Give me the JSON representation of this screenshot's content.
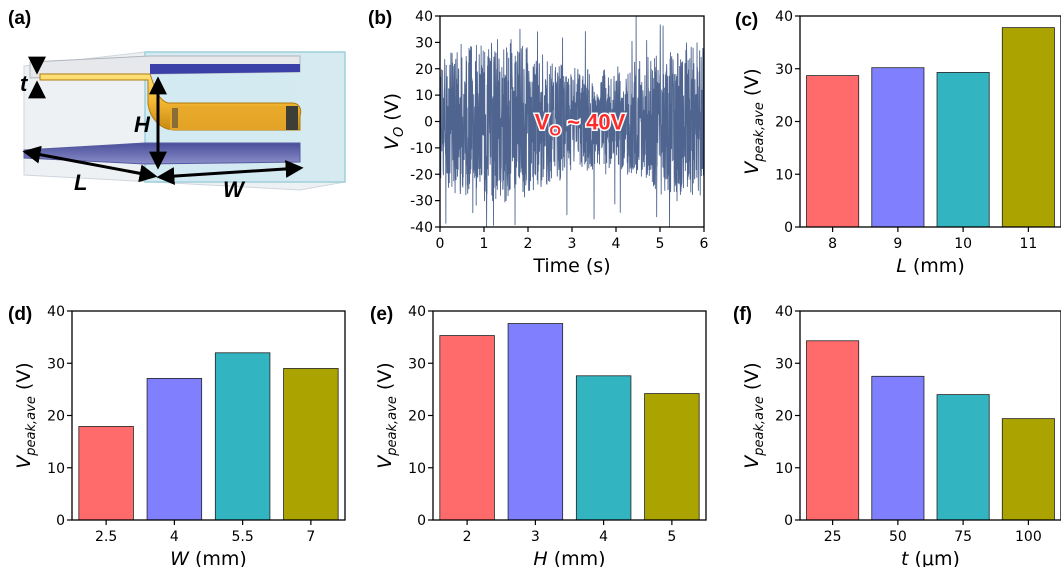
{
  "panel_labels": {
    "a": "(a)",
    "b": "(b)",
    "c": "(c)",
    "d": "(d)",
    "e": "(e)",
    "f": "(f)"
  },
  "diagram": {
    "t": "t",
    "H": "H",
    "L": "L",
    "W": "W"
  },
  "annotation_b": "V_O ~ 40V",
  "colors": {
    "red": "#ff6b6b",
    "blue": "#8080ff",
    "teal": "#33b5c1",
    "olive": "#aaa300",
    "signal": "#4f6590",
    "annotation": "#ff2a2a"
  },
  "chart_data": [
    {
      "id": "b",
      "type": "line",
      "title": "",
      "xlabel": "Time (s)",
      "ylabel": "V_O (V)",
      "xlim": [
        0,
        6
      ],
      "ylim": [
        -40,
        40
      ],
      "xticks": [
        0,
        1,
        2,
        3,
        4,
        5,
        6
      ],
      "yticks": [
        -40,
        -30,
        -20,
        -10,
        0,
        10,
        20,
        30,
        40
      ],
      "series": [
        {
          "description": "noisy voltage signal",
          "values_range": [
            -40,
            40
          ]
        }
      ],
      "annotation": "V_O ~ 40V"
    },
    {
      "id": "c",
      "type": "bar",
      "categories": [
        "8",
        "9",
        "10",
        "11"
      ],
      "values": [
        28.7,
        30.2,
        29.3,
        37.8
      ],
      "xlabel_var": "L",
      "xlabel_unit": " (mm)",
      "ylabel": "V_peak,ave (V)",
      "ylim": [
        0,
        40
      ],
      "yticks": [
        0,
        10,
        20,
        30,
        40
      ]
    },
    {
      "id": "d",
      "type": "bar",
      "categories": [
        "2.5",
        "4",
        "5.5",
        "7"
      ],
      "values": [
        17.9,
        27.1,
        32.0,
        29.0
      ],
      "xlabel_var": "W",
      "xlabel_unit": " (mm)",
      "ylabel": "V_peak,ave (V)",
      "ylim": [
        0,
        40
      ],
      "yticks": [
        0,
        10,
        20,
        30,
        40
      ]
    },
    {
      "id": "e",
      "type": "bar",
      "categories": [
        "2",
        "3",
        "4",
        "5"
      ],
      "values": [
        35.3,
        37.6,
        27.6,
        24.2
      ],
      "xlabel_var": "H",
      "xlabel_unit": " (mm)",
      "ylabel": "V_peak,ave (V)",
      "ylim": [
        0,
        40
      ],
      "yticks": [
        0,
        10,
        20,
        30,
        40
      ]
    },
    {
      "id": "f",
      "type": "bar",
      "categories": [
        "25",
        "50",
        "75",
        "100"
      ],
      "values": [
        34.3,
        27.5,
        24.0,
        19.4
      ],
      "xlabel_var": "t",
      "xlabel_unit": " (μm)",
      "ylabel": "V_peak,ave (V)",
      "ylim": [
        0,
        40
      ],
      "yticks": [
        0,
        10,
        20,
        30,
        40
      ]
    }
  ]
}
